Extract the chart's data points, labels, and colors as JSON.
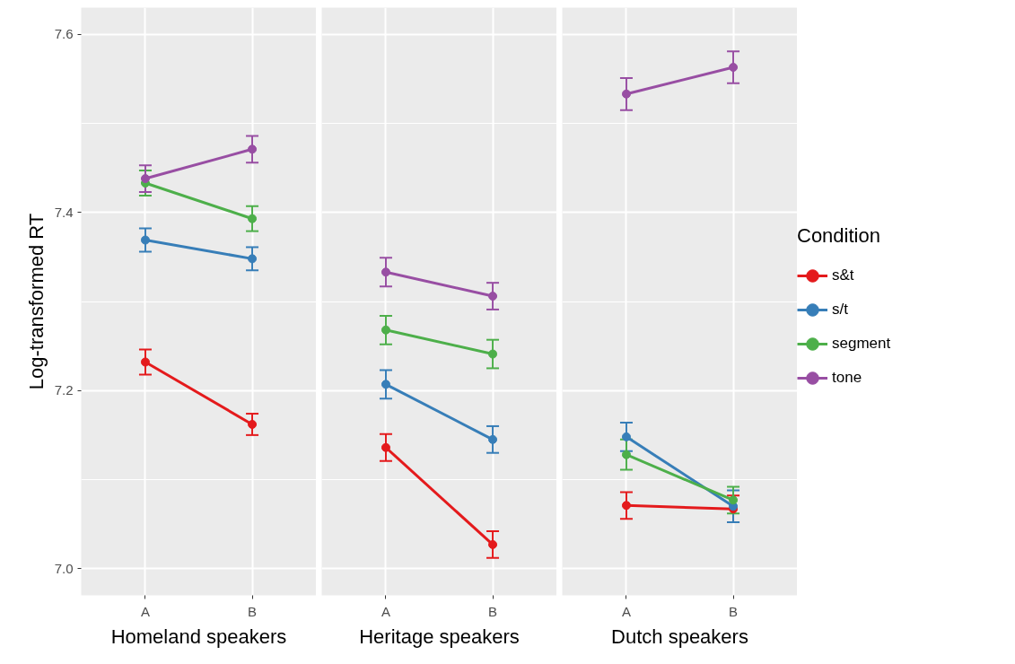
{
  "chart_data": [
    {
      "type": "line",
      "xlabel": "Homeland speakers",
      "ylabel": "Log-transformed RT",
      "categories": [
        "A",
        "B"
      ],
      "ylim": [
        6.97,
        7.63
      ],
      "yticks": [
        {
          "value": 7.0,
          "label": "7.0"
        },
        7.2,
        7.4,
        7.6
      ],
      "grid": true,
      "marker": "circle",
      "line_style": "solid",
      "series": [
        {
          "color": "#e41a1c",
          "values": [
            7.232,
            7.162
          ],
          "errors": [
            0.014,
            0.012
          ]
        },
        {
          "color": "#377eb8",
          "values": [
            7.369,
            7.348
          ],
          "errors": [
            0.013,
            0.013
          ]
        },
        {
          "color": "#4daf4a",
          "values": [
            7.433,
            7.393
          ],
          "errors": [
            0.014,
            0.014
          ]
        },
        {
          "color": "#984ea3",
          "values": [
            7.438,
            7.471
          ],
          "errors": [
            0.015,
            0.015
          ]
        }
      ]
    },
    {
      "type": "line",
      "xlabel": "Heritage speakers",
      "categories": [
        "A",
        "B"
      ],
      "ylim": [
        6.97,
        7.63
      ],
      "yticks": [
        7,
        7.2,
        7.4,
        7.6
      ],
      "grid": true,
      "marker": "circle",
      "line_style": "solid",
      "tick_labels": "x",
      "series": [
        {
          "color": "#e41a1c",
          "values": [
            7.136,
            7.027
          ],
          "errors": [
            0.015,
            0.015
          ]
        },
        {
          "color": "#377eb8",
          "values": [
            7.207,
            7.145
          ],
          "errors": [
            0.016,
            0.015
          ]
        },
        {
          "color": "#4daf4a",
          "values": [
            7.268,
            7.241
          ],
          "errors": [
            0.016,
            0.016
          ]
        },
        {
          "color": "#984ea3",
          "values": [
            7.333,
            7.306
          ],
          "errors": [
            0.016,
            0.015
          ]
        }
      ]
    },
    {
      "type": "line",
      "xlabel": "Dutch speakers",
      "categories": [
        "A",
        "B"
      ],
      "ylim": [
        6.97,
        7.63
      ],
      "yticks": [
        7,
        7.2,
        7.4,
        7.6
      ],
      "grid": true,
      "marker": "circle",
      "line_style": "solid",
      "tick_labels": "x",
      "legend": "right",
      "legend_title": "Condition",
      "series": [
        {
          "name": "s&t",
          "color": "#e41a1c",
          "values": [
            7.071,
            7.067
          ],
          "errors": [
            0.015,
            0.015
          ]
        },
        {
          "name": "s/t",
          "color": "#377eb8",
          "values": [
            7.148,
            7.07
          ],
          "errors": [
            0.016,
            0.018
          ]
        },
        {
          "name": "segment",
          "color": "#4daf4a",
          "values": [
            7.128,
            7.077
          ],
          "errors": [
            0.017,
            0.015
          ]
        },
        {
          "name": "tone",
          "color": "#984ea3",
          "values": [
            7.533,
            7.563
          ],
          "errors": [
            0.018,
            0.018
          ]
        }
      ]
    }
  ]
}
